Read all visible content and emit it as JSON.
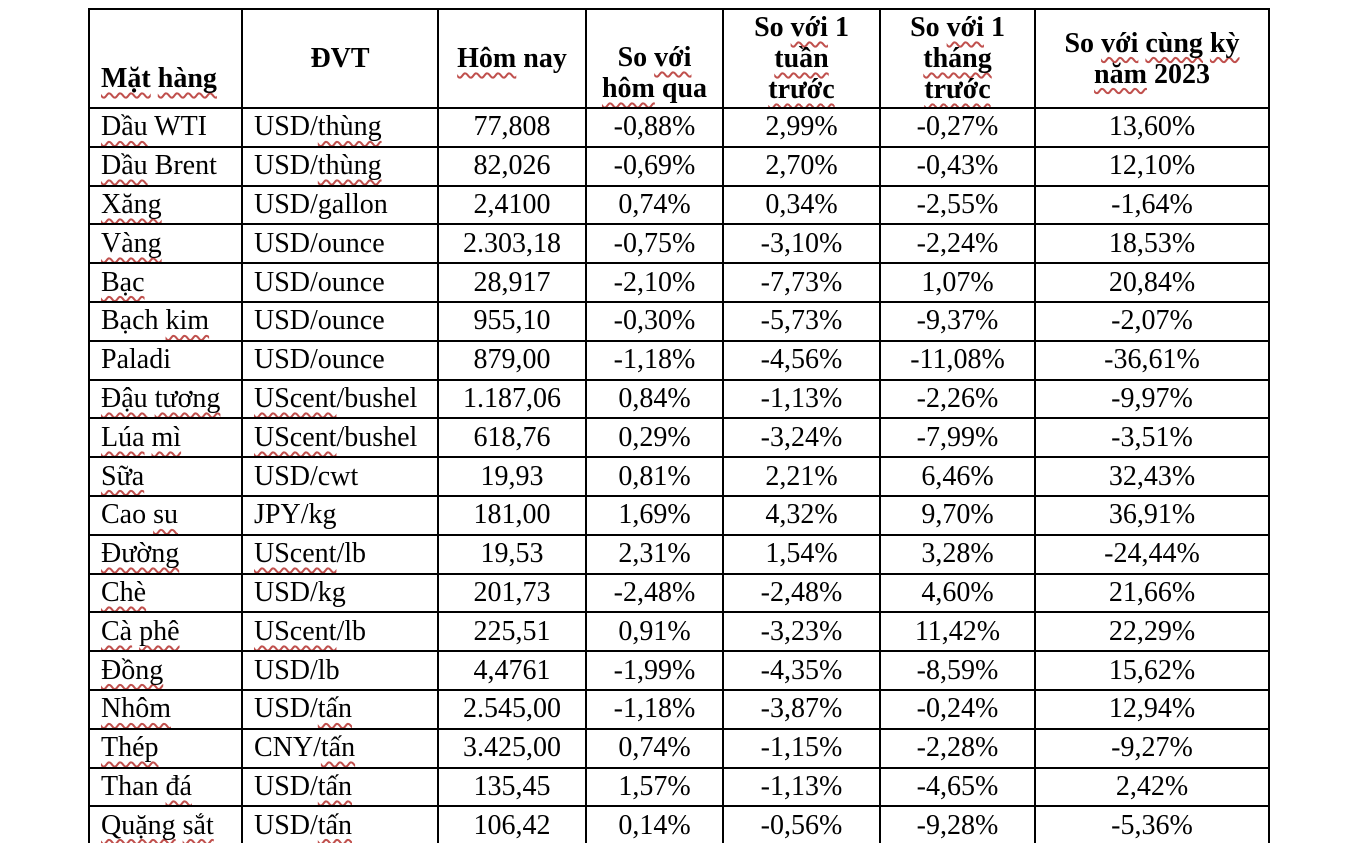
{
  "colors": {
    "text": "#000000",
    "border": "#000000",
    "squiggle": "#C0504D",
    "background": "#FFFFFF"
  },
  "table": {
    "columns": [
      {
        "key": "name",
        "label": "Mặt hàng",
        "lines": [
          [
            {
              "t": "Mặt",
              "s": true
            },
            {
              "t": " ",
              "s": false
            },
            {
              "t": "hàng",
              "s": true
            }
          ]
        ]
      },
      {
        "key": "unit",
        "label": "ĐVT",
        "lines": [
          [
            {
              "t": "ĐVT",
              "s": false
            }
          ]
        ]
      },
      {
        "key": "today",
        "label": "Hôm nay",
        "lines": [
          [
            {
              "t": "Hôm",
              "s": true
            },
            {
              "t": " nay",
              "s": false
            }
          ]
        ]
      },
      {
        "key": "vs_yesterday",
        "label": "So với hôm qua",
        "lines": [
          [
            {
              "t": "So ",
              "s": false
            },
            {
              "t": "với",
              "s": true
            }
          ],
          [
            {
              "t": "hôm",
              "s": true
            },
            {
              "t": " qua",
              "s": false
            }
          ]
        ]
      },
      {
        "key": "vs_week",
        "label": "So với 1 tuần trước",
        "lines": [
          [
            {
              "t": "So ",
              "s": false
            },
            {
              "t": "với",
              "s": true
            },
            {
              "t": " 1",
              "s": false
            }
          ],
          [
            {
              "t": "tuần",
              "s": true
            }
          ],
          [
            {
              "t": "trước",
              "s": true
            }
          ]
        ]
      },
      {
        "key": "vs_month",
        "label": "So với 1 tháng trước",
        "lines": [
          [
            {
              "t": "So ",
              "s": false
            },
            {
              "t": "với",
              "s": true
            },
            {
              "t": " 1",
              "s": false
            }
          ],
          [
            {
              "t": "tháng",
              "s": true
            }
          ],
          [
            {
              "t": "trước",
              "s": true
            }
          ]
        ]
      },
      {
        "key": "vs_year",
        "label": "So với cùng kỳ năm 2023",
        "lines": [
          [
            {
              "t": "So ",
              "s": false
            },
            {
              "t": "với",
              "s": true
            },
            {
              "t": " ",
              "s": false
            },
            {
              "t": "cùng",
              "s": true
            },
            {
              "t": " ",
              "s": false
            },
            {
              "t": "kỳ",
              "s": true
            }
          ],
          [
            {
              "t": "năm",
              "s": true
            },
            {
              "t": " 2023",
              "s": false
            }
          ]
        ]
      }
    ],
    "rows": [
      {
        "name": [
          {
            "t": "Dầu",
            "s": true
          },
          {
            "t": " WTI",
            "s": false
          }
        ],
        "unit": [
          {
            "t": "USD/",
            "s": false
          },
          {
            "t": "thùng",
            "s": true
          }
        ],
        "today": "77,808",
        "vs_yesterday": "-0,88%",
        "vs_week": "2,99%",
        "vs_month": "-0,27%",
        "vs_year": "13,60%"
      },
      {
        "name": [
          {
            "t": "Dầu",
            "s": true
          },
          {
            "t": " Brent",
            "s": false
          }
        ],
        "unit": [
          {
            "t": "USD/",
            "s": false
          },
          {
            "t": "thùng",
            "s": true
          }
        ],
        "today": "82,026",
        "vs_yesterday": "-0,69%",
        "vs_week": "2,70%",
        "vs_month": "-0,43%",
        "vs_year": "12,10%"
      },
      {
        "name": [
          {
            "t": "Xăng",
            "s": true
          }
        ],
        "unit": [
          {
            "t": "USD/gallon",
            "s": false
          }
        ],
        "today": "2,4100",
        "vs_yesterday": "0,74%",
        "vs_week": "0,34%",
        "vs_month": "-2,55%",
        "vs_year": "-1,64%"
      },
      {
        "name": [
          {
            "t": "Vàng",
            "s": true
          }
        ],
        "unit": [
          {
            "t": "USD/ounce",
            "s": false
          }
        ],
        "today": "2.303,18",
        "vs_yesterday": "-0,75%",
        "vs_week": "-3,10%",
        "vs_month": "-2,24%",
        "vs_year": "18,53%"
      },
      {
        "name": [
          {
            "t": "Bạc",
            "s": true
          }
        ],
        "unit": [
          {
            "t": "USD/ounce",
            "s": false
          }
        ],
        "today": "28,917",
        "vs_yesterday": "-2,10%",
        "vs_week": "-7,73%",
        "vs_month": "1,07%",
        "vs_year": "20,84%"
      },
      {
        "name": [
          {
            "t": "Bạch ",
            "s": false
          },
          {
            "t": "kim",
            "s": true
          }
        ],
        "unit": [
          {
            "t": "USD/ounce",
            "s": false
          }
        ],
        "today": "955,10",
        "vs_yesterday": "-0,30%",
        "vs_week": "-5,73%",
        "vs_month": "-9,37%",
        "vs_year": "-2,07%"
      },
      {
        "name": [
          {
            "t": "Paladi",
            "s": false
          }
        ],
        "unit": [
          {
            "t": "USD/ounce",
            "s": false
          }
        ],
        "today": "879,00",
        "vs_yesterday": "-1,18%",
        "vs_week": "-4,56%",
        "vs_month": "-11,08%",
        "vs_year": "-36,61%"
      },
      {
        "name": [
          {
            "t": "Đậu",
            "s": true
          },
          {
            "t": " ",
            "s": false
          },
          {
            "t": "tương",
            "s": true
          }
        ],
        "unit": [
          {
            "t": "UScent",
            "s": true
          },
          {
            "t": "/bushel",
            "s": false
          }
        ],
        "today": "1.187,06",
        "vs_yesterday": "0,84%",
        "vs_week": "-1,13%",
        "vs_month": "-2,26%",
        "vs_year": "-9,97%"
      },
      {
        "name": [
          {
            "t": "Lúa",
            "s": true
          },
          {
            "t": " ",
            "s": false
          },
          {
            "t": "mì",
            "s": true
          }
        ],
        "unit": [
          {
            "t": "UScent",
            "s": true
          },
          {
            "t": "/bushel",
            "s": false
          }
        ],
        "today": "618,76",
        "vs_yesterday": "0,29%",
        "vs_week": "-3,24%",
        "vs_month": "-7,99%",
        "vs_year": "-3,51%"
      },
      {
        "name": [
          {
            "t": "Sữa",
            "s": true
          }
        ],
        "unit": [
          {
            "t": "USD/cwt",
            "s": false
          }
        ],
        "today": "19,93",
        "vs_yesterday": "0,81%",
        "vs_week": "2,21%",
        "vs_month": "6,46%",
        "vs_year": "32,43%"
      },
      {
        "name": [
          {
            "t": "Cao ",
            "s": false
          },
          {
            "t": "su",
            "s": true
          }
        ],
        "unit": [
          {
            "t": "JPY/kg",
            "s": false
          }
        ],
        "today": "181,00",
        "vs_yesterday": "1,69%",
        "vs_week": "4,32%",
        "vs_month": "9,70%",
        "vs_year": "36,91%"
      },
      {
        "name": [
          {
            "t": "Đường",
            "s": true
          }
        ],
        "unit": [
          {
            "t": "UScent",
            "s": true
          },
          {
            "t": "/lb",
            "s": false
          }
        ],
        "today": "19,53",
        "vs_yesterday": "2,31%",
        "vs_week": "1,54%",
        "vs_month": "3,28%",
        "vs_year": "-24,44%"
      },
      {
        "name": [
          {
            "t": "Chè",
            "s": true
          }
        ],
        "unit": [
          {
            "t": "USD/kg",
            "s": false
          }
        ],
        "today": "201,73",
        "vs_yesterday": "-2,48%",
        "vs_week": "-2,48%",
        "vs_month": "4,60%",
        "vs_year": "21,66%"
      },
      {
        "name": [
          {
            "t": "Cà",
            "s": true
          },
          {
            "t": " ",
            "s": false
          },
          {
            "t": "phê",
            "s": true
          }
        ],
        "unit": [
          {
            "t": "UScent",
            "s": true
          },
          {
            "t": "/lb",
            "s": false
          }
        ],
        "today": "225,51",
        "vs_yesterday": "0,91%",
        "vs_week": "-3,23%",
        "vs_month": "11,42%",
        "vs_year": "22,29%"
      },
      {
        "name": [
          {
            "t": "Đồng",
            "s": true
          }
        ],
        "unit": [
          {
            "t": "USD/lb",
            "s": false
          }
        ],
        "today": "4,4761",
        "vs_yesterday": "-1,99%",
        "vs_week": "-4,35%",
        "vs_month": "-8,59%",
        "vs_year": "15,62%"
      },
      {
        "name": [
          {
            "t": "Nhôm",
            "s": true
          }
        ],
        "unit": [
          {
            "t": "USD/",
            "s": false
          },
          {
            "t": "tấn",
            "s": true
          }
        ],
        "today": "2.545,00",
        "vs_yesterday": "-1,18%",
        "vs_week": "-3,87%",
        "vs_month": "-0,24%",
        "vs_year": "12,94%"
      },
      {
        "name": [
          {
            "t": "Thép",
            "s": true
          }
        ],
        "unit": [
          {
            "t": "CNY/",
            "s": false
          },
          {
            "t": "tấn",
            "s": true
          }
        ],
        "today": "3.425,00",
        "vs_yesterday": "0,74%",
        "vs_week": "-1,15%",
        "vs_month": "-2,28%",
        "vs_year": "-9,27%"
      },
      {
        "name": [
          {
            "t": "Than ",
            "s": false
          },
          {
            "t": "đá",
            "s": true
          }
        ],
        "unit": [
          {
            "t": "USD/",
            "s": false
          },
          {
            "t": "tấn",
            "s": true
          }
        ],
        "today": "135,45",
        "vs_yesterday": "1,57%",
        "vs_week": "-1,13%",
        "vs_month": "-4,65%",
        "vs_year": "2,42%"
      },
      {
        "name": [
          {
            "t": "Quặng",
            "s": true
          },
          {
            "t": " ",
            "s": false
          },
          {
            "t": "sắt",
            "s": true
          }
        ],
        "unit": [
          {
            "t": "USD/",
            "s": false
          },
          {
            "t": "tấn",
            "s": true
          }
        ],
        "today": "106,42",
        "vs_yesterday": "0,14%",
        "vs_week": "-0,56%",
        "vs_month": "-9,28%",
        "vs_year": "-5,36%"
      }
    ]
  }
}
